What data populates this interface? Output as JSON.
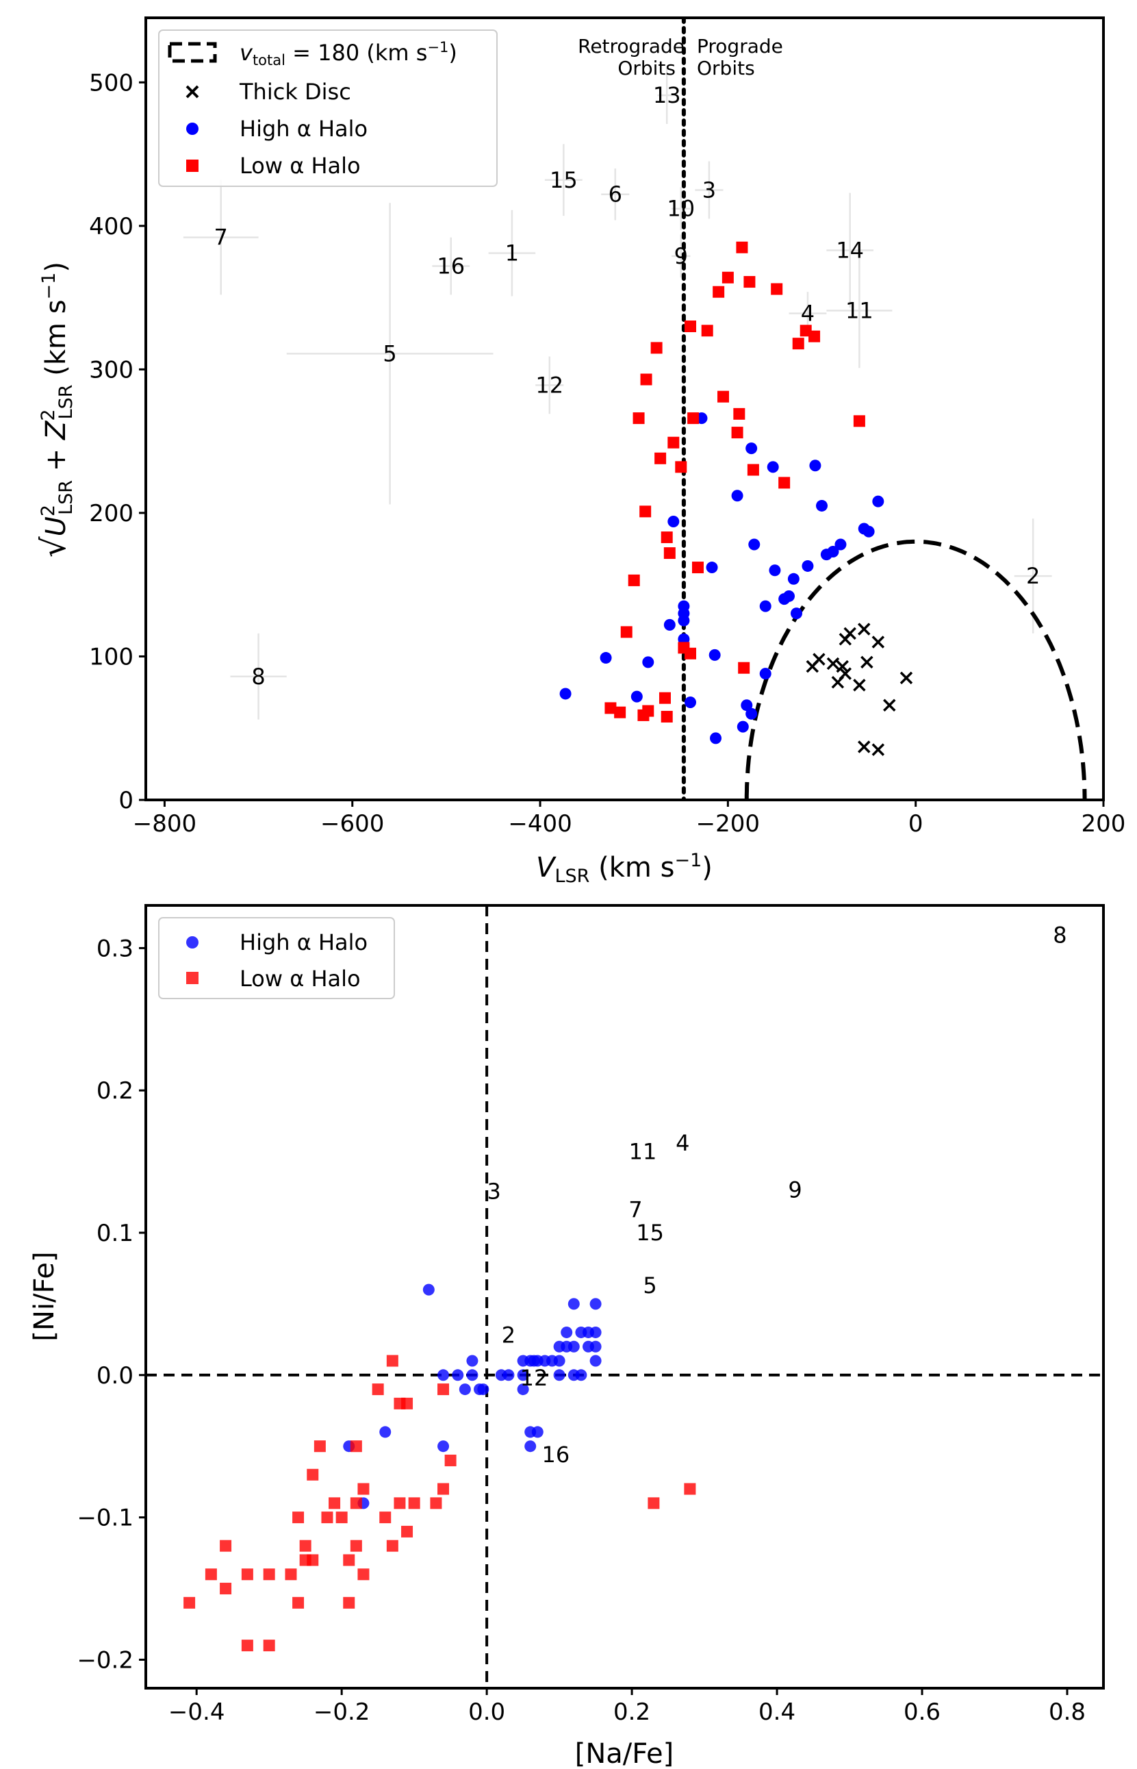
{
  "chart_data": [
    {
      "type": "scatter",
      "title": "",
      "xlabel": "V_LSR (km s^-1)",
      "ylabel": "sqrt(U_LSR^2 + Z_LSR^2) (km s^-1)",
      "xlim": [
        -820,
        200
      ],
      "ylim": [
        0,
        545
      ],
      "xticks": [
        -800,
        -600,
        -400,
        -200,
        0,
        200
      ],
      "yticks": [
        0,
        100,
        200,
        300,
        400,
        500
      ],
      "xtick_labels": [
        "−800",
        "−600",
        "−400",
        "−200",
        "0",
        "200"
      ],
      "ytick_labels": [
        "0",
        "100",
        "200",
        "300",
        "400",
        "500"
      ],
      "xlabel_parts": {
        "main": "V",
        "sub": "LSR",
        "unit": " (km s",
        "sup": "−1",
        "close": ")"
      },
      "ylabel_parts": {
        "root": "√",
        "U": "U",
        "plus": " + ",
        "Z": "Z",
        "sub": "LSR",
        "sq": "2",
        "unit": " (km s",
        "sup": "−1",
        "close": ")"
      },
      "legend": {
        "position": "upper-left",
        "entries": [
          {
            "name": "v_total = 180 (km s^-1)",
            "marker": "dashed-line",
            "parts": {
              "v": "v",
              "sub": "total",
              "rest": " = 180 (km s",
              "sup": "−1",
              "close": ")"
            }
          },
          {
            "name": "Thick Disc",
            "marker": "x"
          },
          {
            "name": "High α Halo",
            "marker": "circle"
          },
          {
            "name": "Low α Halo",
            "marker": "square"
          }
        ]
      },
      "vline": {
        "x": -247,
        "style": "dotted"
      },
      "orbit_labels": {
        "left_1": "Retrograde",
        "left_2": "Orbits",
        "right_1": "Prograde",
        "right_2": "Orbits"
      },
      "circle_radius": 180,
      "series": [
        {
          "name": "Thick Disc",
          "color": "#000000",
          "points": [
            [
              -55,
              119
            ],
            [
              -40,
              110
            ],
            [
              -70,
              116
            ],
            [
              -75,
              112
            ],
            [
              -110,
              93
            ],
            [
              -103,
              98
            ],
            [
              -88,
              95
            ],
            [
              -78,
              93
            ],
            [
              -83,
              82
            ],
            [
              -60,
              80
            ],
            [
              -52,
              96
            ],
            [
              -75,
              88
            ],
            [
              -10,
              85
            ],
            [
              -28,
              66
            ],
            [
              -55,
              37
            ],
            [
              -40,
              35
            ]
          ]
        },
        {
          "name": "High α Halo",
          "color": "#0000ff",
          "points": [
            [
              -373,
              74
            ],
            [
              -330,
              99
            ],
            [
              -285,
              96
            ],
            [
              -297,
              72
            ],
            [
              -262,
              122
            ],
            [
              -258,
              194
            ],
            [
              -247,
              135
            ],
            [
              -247,
              130
            ],
            [
              -247,
              125
            ],
            [
              -247,
              112
            ],
            [
              -240,
              68
            ],
            [
              -228,
              266
            ],
            [
              -217,
              162
            ],
            [
              -214,
              101
            ],
            [
              -213,
              43
            ],
            [
              -190,
              212
            ],
            [
              -184,
              51
            ],
            [
              -180,
              66
            ],
            [
              -175,
              60
            ],
            [
              -175,
              245
            ],
            [
              -172,
              178
            ],
            [
              -160,
              135
            ],
            [
              -160,
              88
            ],
            [
              -150,
              160
            ],
            [
              -152,
              232
            ],
            [
              -140,
              140
            ],
            [
              -135,
              142
            ],
            [
              -130,
              154
            ],
            [
              -127,
              130
            ],
            [
              -115,
              163
            ],
            [
              -107,
              233
            ],
            [
              -100,
              205
            ],
            [
              -95,
              171
            ],
            [
              -88,
              173
            ],
            [
              -80,
              178
            ],
            [
              -55,
              189
            ],
            [
              -50,
              187
            ],
            [
              -40,
              208
            ]
          ]
        },
        {
          "name": "Low α Halo",
          "color": "#ff0000",
          "points": [
            [
              -308,
              117
            ],
            [
              -300,
              153
            ],
            [
              -295,
              266
            ],
            [
              -288,
              201
            ],
            [
              -287,
              293
            ],
            [
              -276,
              315
            ],
            [
              -272,
              238
            ],
            [
              -265,
              183
            ],
            [
              -262,
              172
            ],
            [
              -258,
              249
            ],
            [
              -250,
              232
            ],
            [
              -247,
              106
            ],
            [
              -240,
              102
            ],
            [
              -240,
              330
            ],
            [
              -237,
              266
            ],
            [
              -232,
              162
            ],
            [
              -325,
              64
            ],
            [
              -315,
              61
            ],
            [
              -290,
              59
            ],
            [
              -285,
              62
            ],
            [
              -267,
              71
            ],
            [
              -265,
              58
            ],
            [
              -222,
              327
            ],
            [
              -210,
              354
            ],
            [
              -205,
              281
            ],
            [
              -200,
              364
            ],
            [
              -190,
              256
            ],
            [
              -188,
              269
            ],
            [
              -185,
              385
            ],
            [
              -183,
              92
            ],
            [
              -177,
              361
            ],
            [
              -173,
              230
            ],
            [
              -148,
              356
            ],
            [
              -140,
              221
            ],
            [
              -125,
              318
            ],
            [
              -117,
              327
            ],
            [
              -108,
              323
            ],
            [
              -60,
              264
            ]
          ]
        }
      ],
      "annotations": [
        {
          "text": "1",
          "x": -430,
          "y": 381
        },
        {
          "text": "2",
          "x": 125,
          "y": 156
        },
        {
          "text": "3",
          "x": -220,
          "y": 425
        },
        {
          "text": "4",
          "x": -115,
          "y": 339
        },
        {
          "text": "5",
          "x": -560,
          "y": 311
        },
        {
          "text": "6",
          "x": -320,
          "y": 422
        },
        {
          "text": "7",
          "x": -740,
          "y": 392
        },
        {
          "text": "8",
          "x": -700,
          "y": 86
        },
        {
          "text": "9",
          "x": -250,
          "y": 379
        },
        {
          "text": "10",
          "x": -250,
          "y": 412
        },
        {
          "text": "11",
          "x": -60,
          "y": 341
        },
        {
          "text": "12",
          "x": -390,
          "y": 289
        },
        {
          "text": "13",
          "x": -265,
          "y": 491
        },
        {
          "text": "14",
          "x": -70,
          "y": 383
        },
        {
          "text": "15",
          "x": -375,
          "y": 432
        },
        {
          "text": "16",
          "x": -495,
          "y": 372
        }
      ]
    },
    {
      "type": "scatter",
      "title": "",
      "xlabel": "[Na/Fe]",
      "ylabel": "[Ni/Fe]",
      "xlim": [
        -0.47,
        0.85
      ],
      "ylim": [
        -0.22,
        0.33
      ],
      "xticks": [
        -0.4,
        -0.2,
        0.0,
        0.2,
        0.4,
        0.6,
        0.8
      ],
      "yticks": [
        -0.2,
        -0.1,
        0.0,
        0.1,
        0.2,
        0.3
      ],
      "xtick_labels": [
        "−0.4",
        "−0.2",
        "0.0",
        "0.2",
        "0.4",
        "0.6",
        "0.8"
      ],
      "ytick_labels": [
        "−0.2",
        "−0.1",
        "0.0",
        "0.1",
        "0.2",
        "0.3"
      ],
      "legend": {
        "position": "upper-left",
        "entries": [
          {
            "name": "High α Halo",
            "marker": "circle"
          },
          {
            "name": "Low α Halo",
            "marker": "square"
          }
        ]
      },
      "hline": {
        "y": 0.0,
        "style": "dashed"
      },
      "vline": {
        "x": 0.0,
        "style": "dashed"
      },
      "series": [
        {
          "name": "High α Halo",
          "color": "#0000ff",
          "points": [
            [
              -0.08,
              0.06
            ],
            [
              -0.06,
              0.0
            ],
            [
              -0.04,
              0.0
            ],
            [
              -0.03,
              -0.01
            ],
            [
              -0.02,
              0.0
            ],
            [
              -0.02,
              0.01
            ],
            [
              -0.01,
              -0.01
            ],
            [
              -0.005,
              -0.01
            ],
            [
              0.02,
              0.0
            ],
            [
              0.03,
              0.0
            ],
            [
              0.05,
              0.0
            ],
            [
              0.05,
              0.01
            ],
            [
              0.05,
              -0.01
            ],
            [
              0.06,
              0.01
            ],
            [
              0.065,
              0.01
            ],
            [
              0.07,
              0.01
            ],
            [
              0.06,
              -0.04
            ],
            [
              0.07,
              -0.04
            ],
            [
              0.06,
              -0.05
            ],
            [
              0.08,
              0.01
            ],
            [
              0.09,
              0.01
            ],
            [
              0.1,
              0.0
            ],
            [
              0.1,
              0.02
            ],
            [
              0.1,
              0.01
            ],
            [
              0.11,
              0.02
            ],
            [
              0.11,
              0.03
            ],
            [
              0.12,
              0.05
            ],
            [
              0.12,
              0.0
            ],
            [
              0.12,
              0.02
            ],
            [
              0.13,
              0.03
            ],
            [
              0.13,
              0.0
            ],
            [
              0.14,
              0.02
            ],
            [
              0.14,
              0.03
            ],
            [
              0.15,
              0.03
            ],
            [
              0.15,
              0.01
            ],
            [
              0.15,
              0.02
            ],
            [
              0.15,
              0.05
            ],
            [
              -0.06,
              -0.05
            ],
            [
              -0.14,
              -0.04
            ],
            [
              -0.19,
              -0.05
            ],
            [
              -0.17,
              -0.09
            ]
          ]
        },
        {
          "name": "Low α Halo",
          "color": "#ff0000",
          "points": [
            [
              -0.41,
              -0.16
            ],
            [
              -0.38,
              -0.14
            ],
            [
              -0.36,
              -0.12
            ],
            [
              -0.36,
              -0.15
            ],
            [
              -0.33,
              -0.14
            ],
            [
              -0.33,
              -0.19
            ],
            [
              -0.3,
              -0.14
            ],
            [
              -0.3,
              -0.19
            ],
            [
              -0.27,
              -0.14
            ],
            [
              -0.26,
              -0.16
            ],
            [
              -0.26,
              -0.1
            ],
            [
              -0.25,
              -0.12
            ],
            [
              -0.25,
              -0.13
            ],
            [
              -0.24,
              -0.07
            ],
            [
              -0.24,
              -0.13
            ],
            [
              -0.23,
              -0.05
            ],
            [
              -0.22,
              -0.1
            ],
            [
              -0.21,
              -0.09
            ],
            [
              -0.2,
              -0.1
            ],
            [
              -0.19,
              -0.13
            ],
            [
              -0.19,
              -0.16
            ],
            [
              -0.18,
              -0.05
            ],
            [
              -0.18,
              -0.09
            ],
            [
              -0.18,
              -0.12
            ],
            [
              -0.17,
              -0.08
            ],
            [
              -0.17,
              -0.14
            ],
            [
              -0.15,
              -0.01
            ],
            [
              -0.14,
              -0.1
            ],
            [
              -0.13,
              0.01
            ],
            [
              -0.13,
              -0.12
            ],
            [
              -0.12,
              -0.02
            ],
            [
              -0.12,
              -0.09
            ],
            [
              -0.11,
              -0.02
            ],
            [
              -0.11,
              -0.11
            ],
            [
              -0.1,
              -0.09
            ],
            [
              -0.07,
              -0.09
            ],
            [
              -0.06,
              -0.01
            ],
            [
              -0.06,
              -0.08
            ],
            [
              -0.05,
              -0.06
            ],
            [
              0.23,
              -0.09
            ],
            [
              0.28,
              -0.08
            ]
          ]
        }
      ],
      "annotations": [
        {
          "text": "2",
          "x": 0.03,
          "y": 0.028
        },
        {
          "text": "3",
          "x": 0.01,
          "y": 0.129
        },
        {
          "text": "4",
          "x": 0.27,
          "y": 0.163
        },
        {
          "text": "5",
          "x": 0.225,
          "y": 0.063
        },
        {
          "text": "7",
          "x": 0.205,
          "y": 0.116
        },
        {
          "text": "8",
          "x": 0.79,
          "y": 0.309
        },
        {
          "text": "9",
          "x": 0.425,
          "y": 0.13
        },
        {
          "text": "11",
          "x": 0.215,
          "y": 0.157
        },
        {
          "text": "12",
          "x": 0.065,
          "y": -0.002
        },
        {
          "text": "15",
          "x": 0.225,
          "y": 0.1
        },
        {
          "text": "16",
          "x": 0.095,
          "y": -0.056
        }
      ]
    }
  ]
}
